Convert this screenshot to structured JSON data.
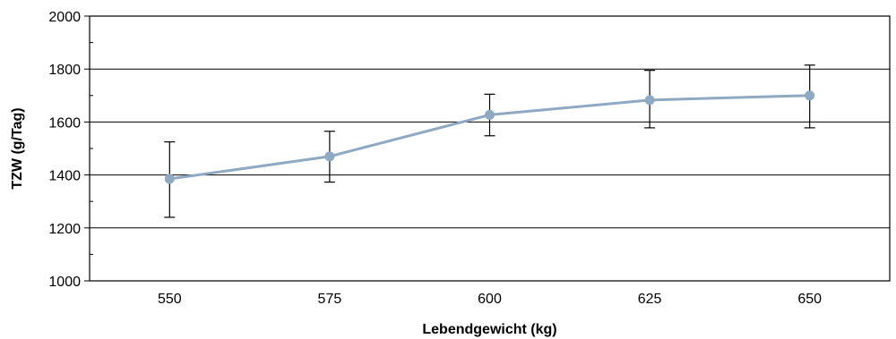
{
  "chart_data": {
    "type": "line",
    "title": "",
    "xlabel": "Lebendgewicht (kg)",
    "ylabel": "TZW (g/Tag)",
    "categories": [
      "550",
      "575",
      "600",
      "625",
      "650"
    ],
    "series": [
      {
        "values": [
          1385,
          1470,
          1627,
          1683,
          1700
        ],
        "error_low": [
          1240,
          1373,
          1548,
          1578,
          1578
        ],
        "error_high": [
          1525,
          1565,
          1705,
          1795,
          1815
        ],
        "color": "#8ea9c1"
      }
    ],
    "ylim": [
      1000,
      2000
    ],
    "yticks": [
      "1000",
      "1200",
      "1400",
      "1600",
      "1800",
      "2000"
    ],
    "grid": "horizontal major gridlines",
    "legend": "none"
  }
}
